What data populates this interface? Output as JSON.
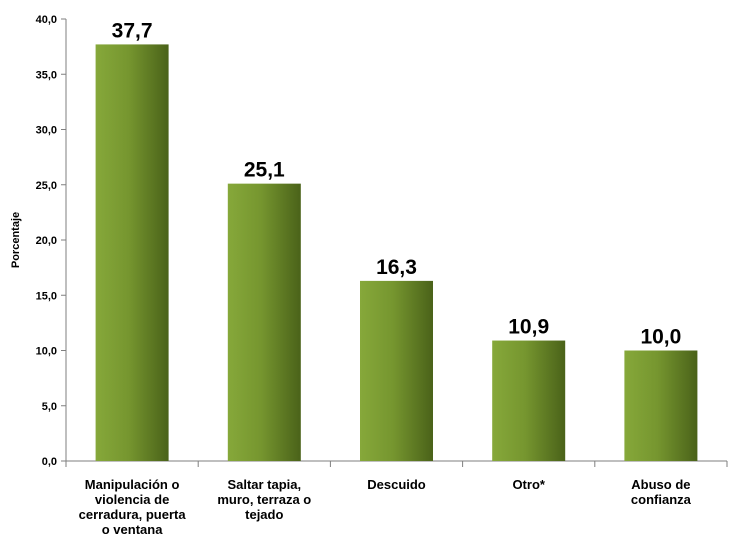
{
  "chart_data": {
    "type": "bar",
    "title": "",
    "xlabel": "",
    "ylabel": "Porcentaje",
    "ylim": [
      0,
      40
    ],
    "y_ticks": [
      "0,0",
      "5,0",
      "10,0",
      "15,0",
      "20,0",
      "25,0",
      "30,0",
      "35,0",
      "40,0"
    ],
    "grid": false,
    "legend": "none",
    "bar_color_light": "#86a83a",
    "bar_color_dark": "#4a6219",
    "categories": [
      [
        "Manipulación o",
        "violencia de",
        "cerradura, puerta",
        "o ventana"
      ],
      [
        "Saltar tapia,",
        "muro, terraza o",
        "tejado"
      ],
      [
        "Descuido"
      ],
      [
        "Otro*"
      ],
      [
        "Abuso de",
        "confianza"
      ]
    ],
    "values": [
      37.7,
      25.1,
      16.3,
      10.9,
      10.0
    ],
    "data_labels": [
      "37,7",
      "25,1",
      "16,3",
      "10,9",
      "10,0"
    ]
  }
}
